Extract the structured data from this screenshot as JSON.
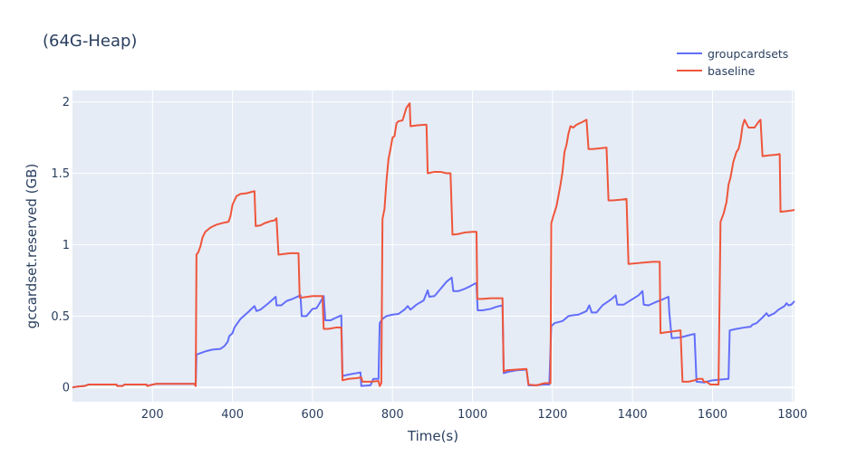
{
  "chart_data": {
    "type": "line",
    "title": "(64G-Heap)",
    "xlabel": "Time(s)",
    "ylabel": "gccardset.reserved (GB)",
    "xlim": [
      0,
      1805
    ],
    "ylim": [
      -0.1,
      2.08
    ],
    "xticks": [
      200,
      400,
      600,
      800,
      1000,
      1200,
      1400,
      1600,
      1800
    ],
    "yticks": [
      0,
      0.5,
      1,
      1.5,
      2
    ],
    "xtick_labels": [
      "200",
      "400",
      "600",
      "800",
      "1000",
      "1200",
      "1400",
      "1600",
      "1800"
    ],
    "ytick_labels": [
      "0",
      "0.5",
      "1",
      "1.5",
      "2"
    ],
    "grid": true,
    "legend": "top-right",
    "series": [
      {
        "name": "groupcardsets",
        "color": "#636efa",
        "points": [
          [
            0,
            0.0
          ],
          [
            10,
            0.005
          ],
          [
            30,
            0.01
          ],
          [
            40,
            0.02
          ],
          [
            110,
            0.02
          ],
          [
            112,
            0.01
          ],
          [
            125,
            0.01
          ],
          [
            130,
            0.02
          ],
          [
            185,
            0.02
          ],
          [
            187,
            0.01
          ],
          [
            200,
            0.02
          ],
          [
            210,
            0.025
          ],
          [
            305,
            0.025
          ],
          [
            308,
            0.01
          ],
          [
            310,
            0.23
          ],
          [
            320,
            0.24
          ],
          [
            335,
            0.255
          ],
          [
            350,
            0.265
          ],
          [
            370,
            0.27
          ],
          [
            380,
            0.29
          ],
          [
            388,
            0.32
          ],
          [
            392,
            0.36
          ],
          [
            400,
            0.38
          ],
          [
            405,
            0.42
          ],
          [
            420,
            0.48
          ],
          [
            440,
            0.53
          ],
          [
            455,
            0.57
          ],
          [
            460,
            0.535
          ],
          [
            470,
            0.545
          ],
          [
            490,
            0.59
          ],
          [
            508,
            0.635
          ],
          [
            510,
            0.575
          ],
          [
            522,
            0.575
          ],
          [
            535,
            0.605
          ],
          [
            550,
            0.62
          ],
          [
            570,
            0.645
          ],
          [
            573,
            0.5
          ],
          [
            585,
            0.5
          ],
          [
            600,
            0.55
          ],
          [
            610,
            0.555
          ],
          [
            620,
            0.6
          ],
          [
            628,
            0.64
          ],
          [
            632,
            0.47
          ],
          [
            645,
            0.47
          ],
          [
            660,
            0.49
          ],
          [
            672,
            0.505
          ],
          [
            675,
            0.08
          ],
          [
            690,
            0.09
          ],
          [
            710,
            0.1
          ],
          [
            720,
            0.105
          ],
          [
            722,
            0.01
          ],
          [
            745,
            0.015
          ],
          [
            752,
            0.06
          ],
          [
            765,
            0.06
          ],
          [
            768,
            0.45
          ],
          [
            775,
            0.48
          ],
          [
            785,
            0.5
          ],
          [
            800,
            0.51
          ],
          [
            815,
            0.515
          ],
          [
            830,
            0.545
          ],
          [
            838,
            0.57
          ],
          [
            845,
            0.545
          ],
          [
            860,
            0.58
          ],
          [
            878,
            0.61
          ],
          [
            888,
            0.68
          ],
          [
            892,
            0.635
          ],
          [
            905,
            0.64
          ],
          [
            920,
            0.69
          ],
          [
            935,
            0.74
          ],
          [
            948,
            0.77
          ],
          [
            952,
            0.675
          ],
          [
            965,
            0.675
          ],
          [
            980,
            0.69
          ],
          [
            995,
            0.71
          ],
          [
            1008,
            0.73
          ],
          [
            1010,
            0.72
          ],
          [
            1013,
            0.54
          ],
          [
            1025,
            0.54
          ],
          [
            1045,
            0.55
          ],
          [
            1060,
            0.565
          ],
          [
            1075,
            0.575
          ],
          [
            1078,
            0.1
          ],
          [
            1090,
            0.11
          ],
          [
            1110,
            0.12
          ],
          [
            1135,
            0.125
          ],
          [
            1140,
            0.015
          ],
          [
            1158,
            0.015
          ],
          [
            1178,
            0.02
          ],
          [
            1192,
            0.02
          ],
          [
            1197,
            0.43
          ],
          [
            1205,
            0.45
          ],
          [
            1225,
            0.465
          ],
          [
            1240,
            0.5
          ],
          [
            1250,
            0.505
          ],
          [
            1265,
            0.51
          ],
          [
            1285,
            0.535
          ],
          [
            1292,
            0.575
          ],
          [
            1298,
            0.525
          ],
          [
            1310,
            0.525
          ],
          [
            1325,
            0.575
          ],
          [
            1348,
            0.62
          ],
          [
            1358,
            0.645
          ],
          [
            1362,
            0.58
          ],
          [
            1378,
            0.58
          ],
          [
            1395,
            0.61
          ],
          [
            1415,
            0.645
          ],
          [
            1425,
            0.675
          ],
          [
            1428,
            0.58
          ],
          [
            1440,
            0.575
          ],
          [
            1460,
            0.6
          ],
          [
            1478,
            0.62
          ],
          [
            1490,
            0.635
          ],
          [
            1492,
            0.525
          ],
          [
            1498,
            0.345
          ],
          [
            1520,
            0.35
          ],
          [
            1540,
            0.365
          ],
          [
            1555,
            0.375
          ],
          [
            1560,
            0.04
          ],
          [
            1580,
            0.035
          ],
          [
            1585,
            0.04
          ],
          [
            1600,
            0.05
          ],
          [
            1620,
            0.055
          ],
          [
            1640,
            0.06
          ],
          [
            1643,
            0.4
          ],
          [
            1660,
            0.41
          ],
          [
            1680,
            0.42
          ],
          [
            1695,
            0.425
          ],
          [
            1700,
            0.44
          ],
          [
            1710,
            0.45
          ],
          [
            1725,
            0.49
          ],
          [
            1735,
            0.52
          ],
          [
            1740,
            0.5
          ],
          [
            1755,
            0.52
          ],
          [
            1765,
            0.545
          ],
          [
            1780,
            0.57
          ],
          [
            1785,
            0.59
          ],
          [
            1790,
            0.575
          ],
          [
            1797,
            0.58
          ],
          [
            1805,
            0.605
          ]
        ]
      },
      {
        "name": "baseline",
        "color": "#ef553b",
        "points": [
          [
            0,
            0.0
          ],
          [
            10,
            0.005
          ],
          [
            30,
            0.01
          ],
          [
            40,
            0.02
          ],
          [
            110,
            0.02
          ],
          [
            112,
            0.01
          ],
          [
            125,
            0.01
          ],
          [
            130,
            0.02
          ],
          [
            185,
            0.02
          ],
          [
            187,
            0.01
          ],
          [
            200,
            0.02
          ],
          [
            210,
            0.025
          ],
          [
            305,
            0.025
          ],
          [
            308,
            0.01
          ],
          [
            310,
            0.93
          ],
          [
            315,
            0.95
          ],
          [
            320,
            0.99
          ],
          [
            325,
            1.05
          ],
          [
            332,
            1.09
          ],
          [
            345,
            1.12
          ],
          [
            360,
            1.14
          ],
          [
            380,
            1.155
          ],
          [
            390,
            1.16
          ],
          [
            395,
            1.2
          ],
          [
            400,
            1.28
          ],
          [
            405,
            1.31
          ],
          [
            410,
            1.34
          ],
          [
            420,
            1.355
          ],
          [
            435,
            1.36
          ],
          [
            455,
            1.375
          ],
          [
            458,
            1.13
          ],
          [
            470,
            1.135
          ],
          [
            480,
            1.15
          ],
          [
            495,
            1.165
          ],
          [
            505,
            1.17
          ],
          [
            510,
            1.185
          ],
          [
            515,
            0.93
          ],
          [
            530,
            0.935
          ],
          [
            545,
            0.94
          ],
          [
            565,
            0.94
          ],
          [
            568,
            0.63
          ],
          [
            575,
            0.63
          ],
          [
            600,
            0.64
          ],
          [
            625,
            0.64
          ],
          [
            628,
            0.41
          ],
          [
            640,
            0.41
          ],
          [
            660,
            0.42
          ],
          [
            672,
            0.42
          ],
          [
            675,
            0.05
          ],
          [
            690,
            0.06
          ],
          [
            710,
            0.065
          ],
          [
            722,
            0.07
          ],
          [
            725,
            0.04
          ],
          [
            745,
            0.04
          ],
          [
            765,
            0.045
          ],
          [
            768,
            0.01
          ],
          [
            772,
            0.03
          ],
          [
            775,
            1.18
          ],
          [
            780,
            1.25
          ],
          [
            785,
            1.45
          ],
          [
            790,
            1.6
          ],
          [
            795,
            1.67
          ],
          [
            800,
            1.75
          ],
          [
            805,
            1.76
          ],
          [
            810,
            1.85
          ],
          [
            815,
            1.865
          ],
          [
            825,
            1.87
          ],
          [
            835,
            1.96
          ],
          [
            843,
            1.99
          ],
          [
            845,
            1.83
          ],
          [
            860,
            1.835
          ],
          [
            880,
            1.84
          ],
          [
            885,
            1.84
          ],
          [
            888,
            1.5
          ],
          [
            905,
            1.51
          ],
          [
            920,
            1.51
          ],
          [
            935,
            1.5
          ],
          [
            945,
            1.5
          ],
          [
            950,
            1.07
          ],
          [
            965,
            1.075
          ],
          [
            980,
            1.085
          ],
          [
            1000,
            1.09
          ],
          [
            1010,
            1.09
          ],
          [
            1012,
            0.62
          ],
          [
            1025,
            0.62
          ],
          [
            1045,
            0.625
          ],
          [
            1075,
            0.625
          ],
          [
            1078,
            0.11
          ],
          [
            1085,
            0.12
          ],
          [
            1110,
            0.125
          ],
          [
            1135,
            0.13
          ],
          [
            1140,
            0.02
          ],
          [
            1160,
            0.015
          ],
          [
            1180,
            0.03
          ],
          [
            1195,
            0.03
          ],
          [
            1197,
            1.15
          ],
          [
            1202,
            1.2
          ],
          [
            1210,
            1.27
          ],
          [
            1220,
            1.42
          ],
          [
            1225,
            1.51
          ],
          [
            1230,
            1.65
          ],
          [
            1235,
            1.7
          ],
          [
            1240,
            1.78
          ],
          [
            1245,
            1.83
          ],
          [
            1252,
            1.82
          ],
          [
            1260,
            1.84
          ],
          [
            1275,
            1.86
          ],
          [
            1285,
            1.875
          ],
          [
            1290,
            1.67
          ],
          [
            1300,
            1.67
          ],
          [
            1320,
            1.675
          ],
          [
            1335,
            1.68
          ],
          [
            1340,
            1.31
          ],
          [
            1350,
            1.31
          ],
          [
            1370,
            1.315
          ],
          [
            1385,
            1.32
          ],
          [
            1390,
            0.865
          ],
          [
            1410,
            0.87
          ],
          [
            1430,
            0.875
          ],
          [
            1450,
            0.88
          ],
          [
            1468,
            0.88
          ],
          [
            1470,
            0.38
          ],
          [
            1480,
            0.385
          ],
          [
            1495,
            0.39
          ],
          [
            1520,
            0.4
          ],
          [
            1525,
            0.04
          ],
          [
            1540,
            0.04
          ],
          [
            1555,
            0.05
          ],
          [
            1565,
            0.06
          ],
          [
            1575,
            0.06
          ],
          [
            1578,
            0.04
          ],
          [
            1585,
            0.04
          ],
          [
            1595,
            0.02
          ],
          [
            1615,
            0.02
          ],
          [
            1620,
            1.16
          ],
          [
            1628,
            1.22
          ],
          [
            1635,
            1.3
          ],
          [
            1640,
            1.42
          ],
          [
            1645,
            1.47
          ],
          [
            1652,
            1.58
          ],
          [
            1660,
            1.65
          ],
          [
            1665,
            1.67
          ],
          [
            1670,
            1.73
          ],
          [
            1675,
            1.83
          ],
          [
            1680,
            1.875
          ],
          [
            1690,
            1.82
          ],
          [
            1705,
            1.82
          ],
          [
            1715,
            1.86
          ],
          [
            1720,
            1.875
          ],
          [
            1725,
            1.62
          ],
          [
            1740,
            1.625
          ],
          [
            1760,
            1.63
          ],
          [
            1768,
            1.635
          ],
          [
            1770,
            1.23
          ],
          [
            1785,
            1.235
          ],
          [
            1800,
            1.24
          ],
          [
            1805,
            1.245
          ]
        ]
      }
    ]
  }
}
